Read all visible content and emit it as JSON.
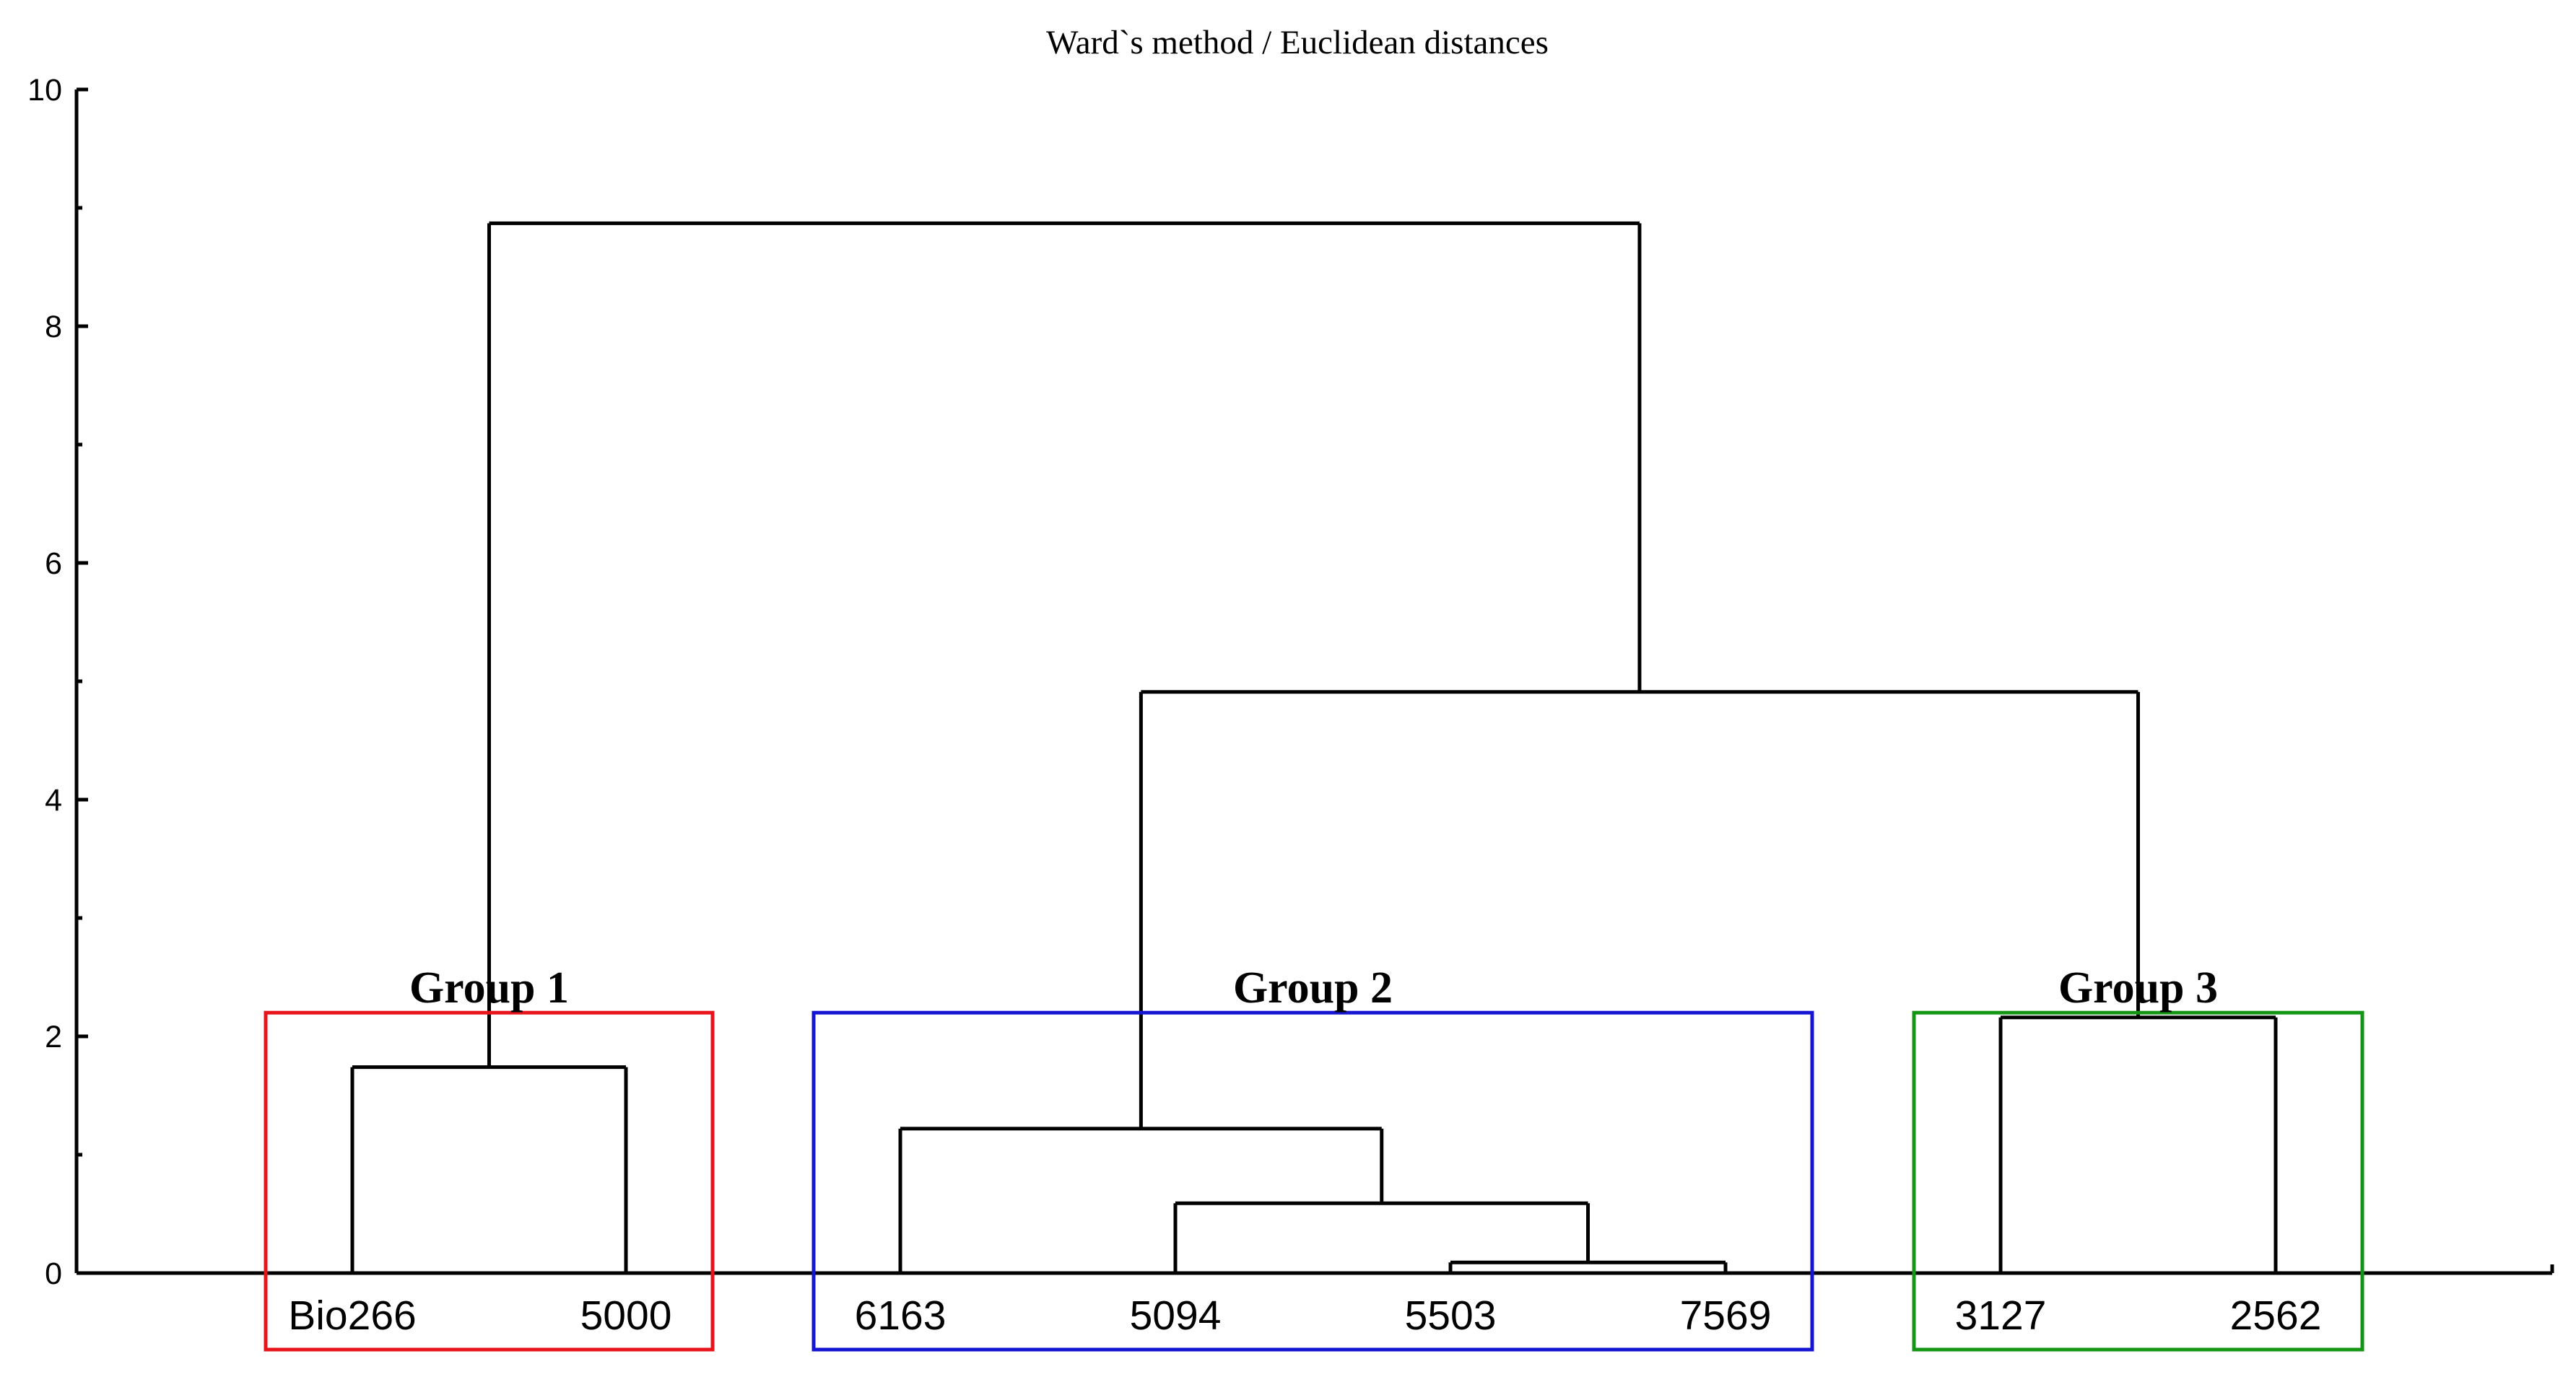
{
  "chart_data": {
    "type": "dendrogram",
    "title": "Ward`s method / Euclidean distances",
    "ylim": [
      0,
      10
    ],
    "yticks": [
      "0",
      "2",
      "4",
      "6",
      "8",
      "10"
    ],
    "leaves": [
      "Bio266",
      "5000",
      "6163",
      "5094",
      "5503",
      "7569",
      "3127",
      "2562"
    ],
    "merges": [
      {
        "left": "Bio266",
        "right": "5000",
        "height": 1.74
      },
      {
        "left": "5503",
        "right": "7569",
        "height": 0.09
      },
      {
        "left": "5094",
        "right": "5503+7569",
        "height": 0.59
      },
      {
        "left": "6163",
        "right": "5094+5503+7569",
        "height": 1.22
      },
      {
        "left": "3127",
        "right": "2562",
        "height": 2.16
      },
      {
        "left": "Group 2",
        "right": "Group 3",
        "height": 4.91
      },
      {
        "left": "Group 1",
        "right": "Group 2+Group 3",
        "height": 8.87
      }
    ],
    "groups": [
      {
        "name": "Group 1",
        "color": "#e8141c",
        "members": [
          "Bio266",
          "5000"
        ]
      },
      {
        "name": "Group 2",
        "color": "#1414d2",
        "members": [
          "6163",
          "5094",
          "5503",
          "7569"
        ]
      },
      {
        "name": "Group 3",
        "color": "#149614",
        "members": [
          "3127",
          "2562"
        ]
      }
    ]
  }
}
